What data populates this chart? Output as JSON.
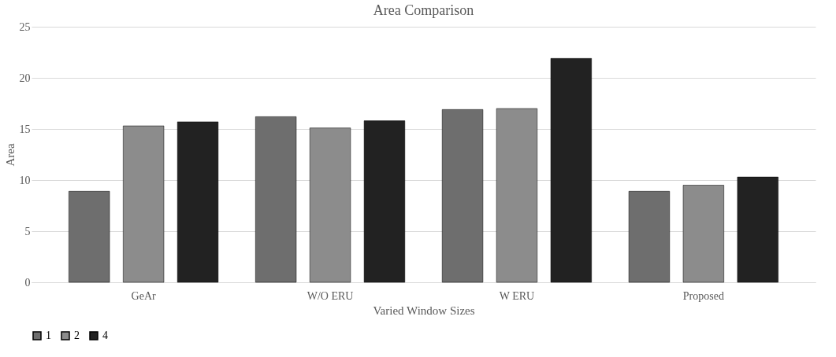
{
  "chart_data": {
    "type": "bar",
    "title": "Area Comparison",
    "xlabel": "Varied Window Sizes",
    "ylabel": "Area",
    "categories": [
      "GeAr",
      "W/O ERU",
      "W ERU",
      "Proposed"
    ],
    "series": [
      {
        "name": "1",
        "color": "#6e6e6e",
        "values": [
          8.9,
          16.2,
          16.9,
          8.9
        ]
      },
      {
        "name": "2",
        "color": "#8c8c8c",
        "values": [
          15.3,
          15.1,
          17.0,
          9.5
        ]
      },
      {
        "name": "4",
        "color": "#222222",
        "values": [
          15.7,
          15.8,
          21.9,
          10.3
        ]
      }
    ],
    "ylim": [
      0,
      25
    ],
    "yticks": [
      0,
      5,
      10,
      15,
      20,
      25
    ],
    "grid": "y",
    "legend": "bottom"
  }
}
